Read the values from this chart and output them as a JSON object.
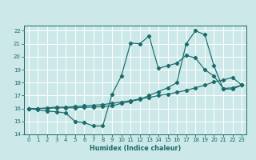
{
  "title": "",
  "xlabel": "Humidex (Indice chaleur)",
  "xlim": [
    -0.5,
    23.5
  ],
  "ylim": [
    14,
    22.4
  ],
  "yticks": [
    14,
    15,
    16,
    17,
    18,
    19,
    20,
    21,
    22
  ],
  "xticks": [
    0,
    1,
    2,
    3,
    4,
    5,
    6,
    7,
    8,
    9,
    10,
    11,
    12,
    13,
    14,
    15,
    16,
    17,
    18,
    19,
    20,
    21,
    22,
    23
  ],
  "bg_color": "#cce8e8",
  "grid_color": "#ffffff",
  "line_color": "#1a6b6b",
  "line1_x": [
    0,
    1,
    2,
    3,
    4,
    5,
    6,
    7,
    8,
    9,
    10,
    11,
    12,
    13,
    14,
    15,
    16,
    17,
    18,
    19,
    20,
    21,
    22,
    23
  ],
  "line1_y": [
    16.0,
    15.9,
    15.8,
    15.75,
    15.65,
    15.0,
    14.9,
    14.65,
    14.65,
    17.1,
    18.5,
    21.05,
    21.0,
    21.6,
    19.1,
    19.3,
    19.5,
    20.1,
    19.9,
    19.0,
    18.5,
    17.55,
    17.6,
    17.8
  ],
  "line2_x": [
    0,
    1,
    2,
    3,
    4,
    5,
    6,
    7,
    8,
    9,
    10,
    11,
    12,
    13,
    14,
    15,
    16,
    17,
    18,
    19,
    20,
    21,
    22,
    23
  ],
  "line2_y": [
    16.0,
    16.0,
    16.05,
    16.1,
    16.1,
    16.15,
    16.2,
    16.25,
    16.3,
    16.4,
    16.5,
    16.6,
    16.75,
    16.85,
    17.0,
    17.1,
    17.25,
    17.4,
    17.6,
    17.8,
    18.05,
    18.2,
    18.4,
    17.8
  ],
  "line3_x": [
    0,
    1,
    2,
    3,
    4,
    5,
    6,
    7,
    8,
    9,
    10,
    11,
    12,
    13,
    14,
    15,
    16,
    17,
    18,
    19,
    20,
    21,
    22,
    23
  ],
  "line3_y": [
    16.0,
    16.0,
    16.0,
    16.05,
    16.05,
    16.05,
    16.1,
    16.1,
    16.15,
    16.2,
    16.4,
    16.55,
    16.7,
    17.0,
    17.3,
    17.6,
    18.0,
    21.0,
    22.0,
    21.7,
    19.3,
    17.5,
    17.5,
    17.8
  ]
}
